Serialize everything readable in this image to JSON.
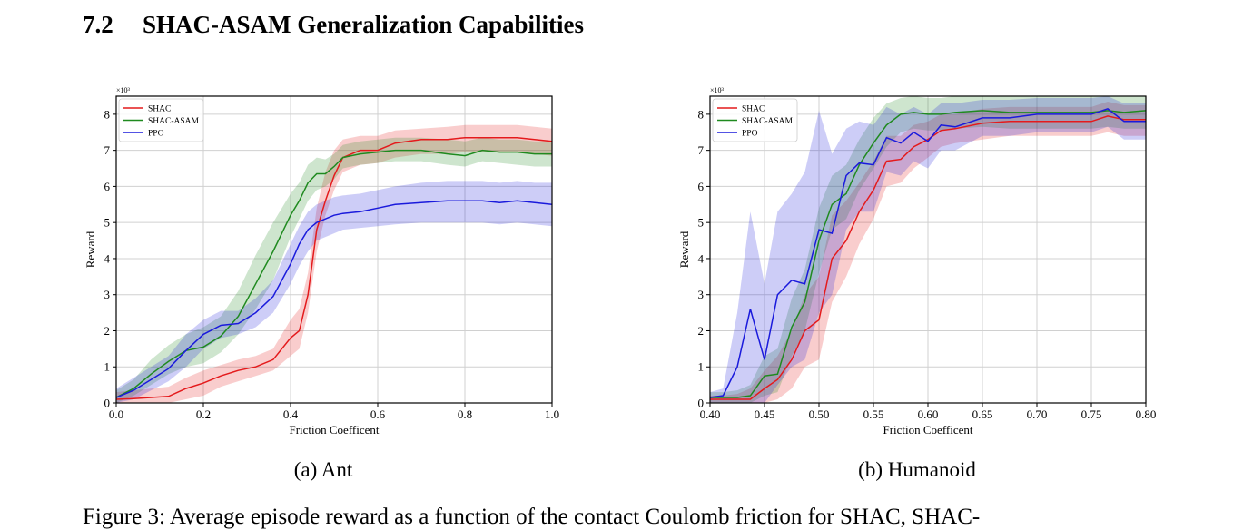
{
  "section": {
    "number": "7.2",
    "title": "SHAC-ASAM Generalization Capabilities"
  },
  "figure_caption": "Figure 3: Average episode reward as a function of the contact Coulomb friction for SHAC, SHAC-",
  "colors": {
    "SHAC": "#e41a1c",
    "SHAC-ASAM": "#1f8a1f",
    "PPO": "#1a1adc"
  },
  "chart_data": [
    {
      "type": "line",
      "subcaption": "(a) Ant",
      "xlabel": "Friction Coefficent",
      "ylabel": "Reward",
      "y_multiplier": "×10³",
      "xlim": [
        0.0,
        1.0
      ],
      "ylim": [
        0,
        8.5
      ],
      "xticks": [
        0.0,
        0.2,
        0.4,
        0.6,
        0.8,
        1.0
      ],
      "xtick_labels": [
        "0.0",
        "0.2",
        "0.4",
        "0.6",
        "0.8",
        "1.0"
      ],
      "yticks": [
        0,
        1,
        2,
        3,
        4,
        5,
        6,
        7,
        8
      ],
      "ytick_labels": [
        "0",
        "1",
        "2",
        "3",
        "4",
        "5",
        "6",
        "7",
        "8"
      ],
      "grid": true,
      "legend": "top-left",
      "x": [
        0.0,
        0.04,
        0.08,
        0.12,
        0.16,
        0.2,
        0.24,
        0.28,
        0.32,
        0.36,
        0.4,
        0.42,
        0.44,
        0.46,
        0.48,
        0.5,
        0.52,
        0.56,
        0.6,
        0.64,
        0.7,
        0.76,
        0.8,
        0.84,
        0.88,
        0.92,
        0.96,
        1.0
      ],
      "series": [
        {
          "name": "SHAC",
          "values": [
            0.1,
            0.12,
            0.15,
            0.18,
            0.4,
            0.55,
            0.75,
            0.9,
            1.0,
            1.2,
            1.8,
            2.0,
            3.0,
            4.8,
            5.6,
            6.3,
            6.8,
            7.0,
            7.0,
            7.2,
            7.3,
            7.3,
            7.35,
            7.35,
            7.35,
            7.35,
            7.3,
            7.25
          ],
          "lower": [
            0.0,
            0.0,
            0.0,
            0.0,
            0.1,
            0.2,
            0.45,
            0.6,
            0.75,
            0.9,
            1.3,
            1.5,
            2.5,
            4.2,
            5.2,
            5.9,
            6.4,
            6.6,
            6.65,
            6.8,
            6.9,
            6.9,
            6.95,
            6.95,
            6.95,
            6.95,
            6.9,
            6.85
          ],
          "upper": [
            0.3,
            0.35,
            0.4,
            0.45,
            0.7,
            0.9,
            1.05,
            1.2,
            1.3,
            1.5,
            2.3,
            2.6,
            3.6,
            5.4,
            6.4,
            7.0,
            7.3,
            7.4,
            7.4,
            7.55,
            7.6,
            7.65,
            7.7,
            7.7,
            7.7,
            7.7,
            7.65,
            7.6
          ]
        },
        {
          "name": "SHAC-ASAM",
          "values": [
            0.15,
            0.4,
            0.8,
            1.15,
            1.45,
            1.55,
            1.85,
            2.4,
            3.3,
            4.2,
            5.2,
            5.6,
            6.1,
            6.35,
            6.35,
            6.55,
            6.8,
            6.9,
            6.95,
            7.0,
            7.0,
            6.9,
            6.85,
            7.0,
            6.95,
            6.95,
            6.9,
            6.9
          ],
          "lower": [
            0.0,
            0.2,
            0.5,
            0.8,
            1.0,
            1.1,
            1.4,
            1.9,
            2.6,
            3.4,
            4.6,
            5.1,
            5.6,
            5.9,
            6.0,
            6.2,
            6.5,
            6.6,
            6.65,
            6.7,
            6.7,
            6.6,
            6.55,
            6.7,
            6.65,
            6.6,
            6.55,
            6.55
          ],
          "upper": [
            0.35,
            0.65,
            1.2,
            1.6,
            1.9,
            2.1,
            2.4,
            3.1,
            4.1,
            5.0,
            5.8,
            6.1,
            6.6,
            6.8,
            6.75,
            6.9,
            7.15,
            7.25,
            7.3,
            7.35,
            7.35,
            7.3,
            7.25,
            7.35,
            7.3,
            7.3,
            7.25,
            7.25
          ]
        },
        {
          "name": "PPO",
          "values": [
            0.15,
            0.35,
            0.65,
            0.95,
            1.45,
            1.9,
            2.15,
            2.2,
            2.5,
            2.95,
            3.85,
            4.4,
            4.8,
            5.0,
            5.1,
            5.2,
            5.25,
            5.3,
            5.4,
            5.5,
            5.55,
            5.6,
            5.6,
            5.6,
            5.55,
            5.6,
            5.55,
            5.5
          ],
          "lower": [
            0.0,
            0.1,
            0.35,
            0.6,
            1.0,
            1.5,
            1.8,
            1.9,
            2.1,
            2.5,
            3.3,
            3.8,
            4.2,
            4.5,
            4.6,
            4.7,
            4.8,
            4.85,
            4.9,
            4.95,
            5.0,
            5.0,
            5.0,
            5.0,
            4.95,
            5.0,
            4.95,
            4.9
          ],
          "upper": [
            0.4,
            0.7,
            1.0,
            1.3,
            1.9,
            2.3,
            2.55,
            2.55,
            2.9,
            3.4,
            4.4,
            4.9,
            5.3,
            5.5,
            5.6,
            5.7,
            5.75,
            5.8,
            5.9,
            6.0,
            6.1,
            6.15,
            6.15,
            6.15,
            6.1,
            6.15,
            6.1,
            6.1
          ]
        }
      ]
    },
    {
      "type": "line",
      "subcaption": "(b) Humanoid",
      "xlabel": "Friction Coefficent",
      "ylabel": "Reward",
      "y_multiplier": "×10³",
      "xlim": [
        0.4,
        0.8
      ],
      "ylim": [
        0,
        8.5
      ],
      "xticks": [
        0.4,
        0.45,
        0.5,
        0.55,
        0.6,
        0.65,
        0.7,
        0.75,
        0.8
      ],
      "xtick_labels": [
        "0.40",
        "0.45",
        "0.50",
        "0.55",
        "0.60",
        "0.65",
        "0.70",
        "0.75",
        "0.80"
      ],
      "yticks": [
        0,
        1,
        2,
        3,
        4,
        5,
        6,
        7,
        8
      ],
      "ytick_labels": [
        "0",
        "1",
        "2",
        "3",
        "4",
        "5",
        "6",
        "7",
        "8"
      ],
      "grid": true,
      "legend": "top-left",
      "x": [
        0.4,
        0.412,
        0.425,
        0.437,
        0.45,
        0.462,
        0.475,
        0.487,
        0.5,
        0.512,
        0.525,
        0.537,
        0.55,
        0.562,
        0.575,
        0.587,
        0.6,
        0.612,
        0.625,
        0.65,
        0.675,
        0.7,
        0.725,
        0.75,
        0.765,
        0.78,
        0.8
      ],
      "series": [
        {
          "name": "SHAC",
          "values": [
            0.1,
            0.1,
            0.1,
            0.1,
            0.4,
            0.65,
            1.2,
            2.0,
            2.3,
            4.0,
            4.5,
            5.3,
            5.9,
            6.7,
            6.75,
            7.1,
            7.3,
            7.55,
            7.6,
            7.75,
            7.8,
            7.8,
            7.8,
            7.8,
            7.95,
            7.85,
            7.85
          ],
          "lower": [
            0.0,
            0.0,
            0.0,
            0.0,
            0.0,
            0.1,
            0.4,
            1.0,
            1.2,
            2.8,
            3.5,
            4.4,
            5.1,
            6.0,
            6.1,
            6.5,
            6.8,
            7.1,
            7.2,
            7.3,
            7.4,
            7.4,
            7.4,
            7.4,
            7.5,
            7.4,
            7.4
          ],
          "upper": [
            0.2,
            0.2,
            0.25,
            0.4,
            0.9,
            1.3,
            2.0,
            3.0,
            3.5,
            5.2,
            5.6,
            6.1,
            6.7,
            7.4,
            7.4,
            7.7,
            7.8,
            8.0,
            8.0,
            8.15,
            8.2,
            8.2,
            8.2,
            8.2,
            8.35,
            8.25,
            8.25
          ]
        },
        {
          "name": "SHAC-ASAM",
          "values": [
            0.15,
            0.15,
            0.15,
            0.2,
            0.75,
            0.8,
            2.1,
            2.8,
            4.5,
            5.5,
            5.8,
            6.6,
            7.2,
            7.7,
            8.0,
            8.05,
            8.0,
            8.0,
            8.05,
            8.1,
            8.05,
            8.05,
            8.05,
            8.05,
            8.1,
            8.05,
            8.1
          ],
          "lower": [
            0.0,
            0.0,
            0.0,
            0.0,
            0.2,
            0.3,
            1.3,
            2.0,
            3.6,
            4.8,
            5.1,
            5.9,
            6.5,
            7.1,
            7.5,
            7.6,
            7.55,
            7.55,
            7.6,
            7.65,
            7.6,
            7.6,
            7.6,
            7.6,
            7.65,
            7.6,
            7.6
          ],
          "upper": [
            0.3,
            0.3,
            0.35,
            0.5,
            1.3,
            1.5,
            2.9,
            3.7,
            5.4,
            6.3,
            6.6,
            7.3,
            7.9,
            8.3,
            8.45,
            8.5,
            8.45,
            8.45,
            8.5,
            8.5,
            8.5,
            8.5,
            8.5,
            8.5,
            8.5,
            8.5,
            8.5
          ]
        },
        {
          "name": "PPO",
          "values": [
            0.15,
            0.2,
            1.0,
            2.6,
            1.2,
            3.0,
            3.4,
            3.3,
            4.8,
            4.7,
            6.3,
            6.65,
            6.6,
            7.35,
            7.2,
            7.5,
            7.25,
            7.7,
            7.65,
            7.9,
            7.9,
            8.0,
            8.0,
            8.0,
            8.15,
            7.8,
            7.8
          ],
          "lower": [
            0.0,
            0.0,
            0.0,
            0.0,
            0.0,
            0.5,
            1.0,
            1.2,
            2.5,
            3.0,
            4.8,
            5.3,
            5.3,
            6.4,
            6.3,
            6.7,
            6.5,
            7.0,
            7.0,
            7.4,
            7.4,
            7.5,
            7.5,
            7.5,
            7.65,
            7.3,
            7.3
          ],
          "upper": [
            0.3,
            0.4,
            2.5,
            5.3,
            3.3,
            5.3,
            5.8,
            6.4,
            8.1,
            6.9,
            7.6,
            7.8,
            7.7,
            8.2,
            8.0,
            8.2,
            8.0,
            8.3,
            8.3,
            8.4,
            8.4,
            8.45,
            8.45,
            8.45,
            8.5,
            8.3,
            8.3
          ]
        }
      ]
    }
  ]
}
